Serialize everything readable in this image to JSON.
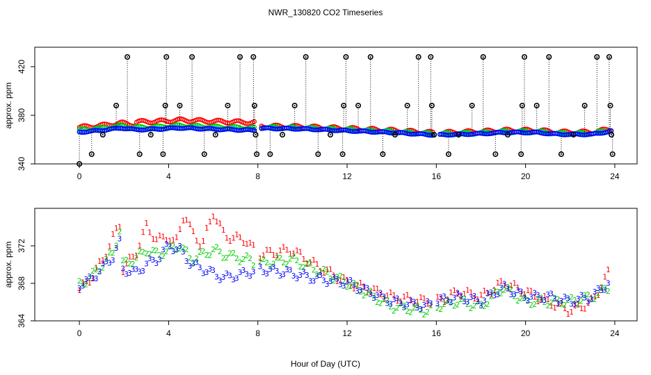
{
  "title": "NWR_130820  CO2 Timeseries",
  "xlabel": "Hour of Day (UTC)",
  "chart_data": [
    {
      "type": "scatter",
      "ylabel": "approx. ppm",
      "xlim": [
        -2,
        25
      ],
      "ylim": [
        340,
        436
      ],
      "x_ticks": [
        0,
        4,
        8,
        12,
        16,
        20,
        24
      ],
      "y_ticks": [
        340,
        380,
        420
      ],
      "colors": {
        "s1": "#ff0000",
        "s2": "#00cc00",
        "s3": "#0000ff",
        "s4": "#00bbbb",
        "spikes": "#000000"
      },
      "series_base": [
        {
          "h": 0.0,
          "v": 366.5
        },
        {
          "h": 1.0,
          "v": 368
        },
        {
          "h": 1.9,
          "v": 370
        },
        {
          "h": 2.5,
          "v": 368.5
        },
        {
          "h": 3.5,
          "v": 369
        },
        {
          "h": 4.5,
          "v": 370
        },
        {
          "h": 6.0,
          "v": 369
        },
        {
          "h": 7.9,
          "v": 368
        },
        {
          "h": 8.1,
          "v": 369.5
        },
        {
          "h": 10.0,
          "v": 369
        },
        {
          "h": 12.0,
          "v": 367.5
        },
        {
          "h": 14.0,
          "v": 366
        },
        {
          "h": 15.9,
          "v": 364
        },
        {
          "h": 16.1,
          "v": 364
        },
        {
          "h": 18.0,
          "v": 365
        },
        {
          "h": 19.0,
          "v": 366
        },
        {
          "h": 20.5,
          "v": 366
        },
        {
          "h": 21.5,
          "v": 364.5
        },
        {
          "h": 23.0,
          "v": 364.5
        },
        {
          "h": 23.8,
          "v": 367
        }
      ],
      "spikes": [
        {
          "x": 0.0,
          "y": 340
        },
        {
          "x": 0.55,
          "y": 348
        },
        {
          "x": 1.05,
          "y": 364
        },
        {
          "x": 1.65,
          "y": 388
        },
        {
          "x": 2.15,
          "y": 428
        },
        {
          "x": 2.7,
          "y": 348
        },
        {
          "x": 3.2,
          "y": 364
        },
        {
          "x": 3.75,
          "y": 348
        },
        {
          "x": 3.85,
          "y": 388
        },
        {
          "x": 3.9,
          "y": 428
        },
        {
          "x": 4.5,
          "y": 388
        },
        {
          "x": 5.05,
          "y": 428
        },
        {
          "x": 5.6,
          "y": 348
        },
        {
          "x": 6.1,
          "y": 364
        },
        {
          "x": 6.65,
          "y": 388
        },
        {
          "x": 7.2,
          "y": 428
        },
        {
          "x": 7.8,
          "y": 428
        },
        {
          "x": 7.85,
          "y": 388
        },
        {
          "x": 7.9,
          "y": 364
        },
        {
          "x": 7.95,
          "y": 348
        },
        {
          "x": 8.55,
          "y": 348
        },
        {
          "x": 9.1,
          "y": 364
        },
        {
          "x": 9.65,
          "y": 388
        },
        {
          "x": 10.15,
          "y": 428
        },
        {
          "x": 10.7,
          "y": 348
        },
        {
          "x": 11.25,
          "y": 364
        },
        {
          "x": 11.8,
          "y": 348
        },
        {
          "x": 11.85,
          "y": 388
        },
        {
          "x": 11.95,
          "y": 428
        },
        {
          "x": 12.5,
          "y": 388
        },
        {
          "x": 13.05,
          "y": 428
        },
        {
          "x": 13.6,
          "y": 348
        },
        {
          "x": 14.15,
          "y": 364
        },
        {
          "x": 14.7,
          "y": 388
        },
        {
          "x": 15.2,
          "y": 428
        },
        {
          "x": 15.75,
          "y": 428
        },
        {
          "x": 15.8,
          "y": 388
        },
        {
          "x": 15.9,
          "y": 364
        },
        {
          "x": 16.55,
          "y": 348
        },
        {
          "x": 17.0,
          "y": 364
        },
        {
          "x": 17.6,
          "y": 388
        },
        {
          "x": 18.1,
          "y": 428
        },
        {
          "x": 18.65,
          "y": 348
        },
        {
          "x": 19.2,
          "y": 364
        },
        {
          "x": 19.8,
          "y": 348
        },
        {
          "x": 19.85,
          "y": 388
        },
        {
          "x": 19.95,
          "y": 428
        },
        {
          "x": 20.5,
          "y": 388
        },
        {
          "x": 21.05,
          "y": 428
        },
        {
          "x": 21.6,
          "y": 348
        },
        {
          "x": 22.15,
          "y": 364
        },
        {
          "x": 22.65,
          "y": 388
        },
        {
          "x": 23.2,
          "y": 428
        },
        {
          "x": 23.75,
          "y": 428
        },
        {
          "x": 23.8,
          "y": 388
        },
        {
          "x": 23.85,
          "y": 364
        },
        {
          "x": 23.9,
          "y": 348
        }
      ]
    },
    {
      "type": "scatter",
      "ylabel": "approx. ppm",
      "xlim": [
        -2,
        25
      ],
      "ylim": [
        364,
        376
      ],
      "x_ticks": [
        0,
        4,
        8,
        12,
        16,
        20,
        24
      ],
      "y_ticks": [
        364,
        368,
        372
      ],
      "point_labels": [
        "1",
        "2",
        "3"
      ],
      "series": [
        {
          "label": "1",
          "color": "#ff0000",
          "points": [
            {
              "x": 0.0,
              "y": 367.2
            },
            {
              "x": 0.5,
              "y": 368.5
            },
            {
              "x": 1.0,
              "y": 370.2
            },
            {
              "x": 1.5,
              "y": 372.8
            },
            {
              "x": 1.85,
              "y": 374.5
            },
            {
              "x": 1.95,
              "y": 369.5
            },
            {
              "x": 2.5,
              "y": 371.0
            },
            {
              "x": 3.0,
              "y": 374.0
            },
            {
              "x": 3.5,
              "y": 372.5
            },
            {
              "x": 4.0,
              "y": 373.0
            },
            {
              "x": 4.3,
              "y": 372.0
            },
            {
              "x": 4.7,
              "y": 375.5
            },
            {
              "x": 5.0,
              "y": 373.5
            },
            {
              "x": 5.5,
              "y": 372.0
            },
            {
              "x": 6.0,
              "y": 375.5
            },
            {
              "x": 6.5,
              "y": 373.0
            },
            {
              "x": 7.5,
              "y": 372.5
            },
            {
              "x": 8.0,
              "y": 371.0
            },
            {
              "x": 9.5,
              "y": 371.5
            },
            {
              "x": 10.5,
              "y": 370.0
            },
            {
              "x": 12.0,
              "y": 368.0
            },
            {
              "x": 14.0,
              "y": 366.5
            },
            {
              "x": 15.5,
              "y": 366.0
            },
            {
              "x": 16.0,
              "y": 366.0
            },
            {
              "x": 17.0,
              "y": 367.0
            },
            {
              "x": 18.0,
              "y": 366.5
            },
            {
              "x": 19.0,
              "y": 368.0
            },
            {
              "x": 20.0,
              "y": 367.0
            },
            {
              "x": 21.0,
              "y": 366.0
            },
            {
              "x": 22.0,
              "y": 365.0
            },
            {
              "x": 23.0,
              "y": 366.0
            },
            {
              "x": 23.7,
              "y": 369.0
            }
          ]
        },
        {
          "label": "2",
          "color": "#00cc00",
          "points": [
            {
              "x": 0.0,
              "y": 367.8
            },
            {
              "x": 0.5,
              "y": 368.6
            },
            {
              "x": 1.0,
              "y": 369.8
            },
            {
              "x": 1.5,
              "y": 371.2
            },
            {
              "x": 1.85,
              "y": 374.0
            },
            {
              "x": 1.95,
              "y": 370.0
            },
            {
              "x": 2.5,
              "y": 370.5
            },
            {
              "x": 3.0,
              "y": 371.5
            },
            {
              "x": 3.5,
              "y": 371.0
            },
            {
              "x": 4.0,
              "y": 371.5
            },
            {
              "x": 4.5,
              "y": 372.0
            },
            {
              "x": 5.0,
              "y": 370.5
            },
            {
              "x": 5.5,
              "y": 371.0
            },
            {
              "x": 6.0,
              "y": 371.5
            },
            {
              "x": 6.5,
              "y": 371.0
            },
            {
              "x": 7.5,
              "y": 370.5
            },
            {
              "x": 8.0,
              "y": 370.0
            },
            {
              "x": 9.5,
              "y": 370.5
            },
            {
              "x": 10.5,
              "y": 369.5
            },
            {
              "x": 12.0,
              "y": 368.0
            },
            {
              "x": 14.0,
              "y": 365.5
            },
            {
              "x": 15.5,
              "y": 365.0
            },
            {
              "x": 16.0,
              "y": 365.5
            },
            {
              "x": 17.0,
              "y": 366.0
            },
            {
              "x": 18.0,
              "y": 365.5
            },
            {
              "x": 19.0,
              "y": 367.5
            },
            {
              "x": 20.0,
              "y": 366.0
            },
            {
              "x": 21.0,
              "y": 366.0
            },
            {
              "x": 22.0,
              "y": 366.0
            },
            {
              "x": 23.0,
              "y": 366.5
            },
            {
              "x": 23.7,
              "y": 367.5
            }
          ]
        },
        {
          "label": "3",
          "color": "#0000ff",
          "points": [
            {
              "x": 0.0,
              "y": 367.8
            },
            {
              "x": 0.5,
              "y": 368.3
            },
            {
              "x": 1.0,
              "y": 369.5
            },
            {
              "x": 1.5,
              "y": 370.8
            },
            {
              "x": 1.85,
              "y": 372.5
            },
            {
              "x": 1.95,
              "y": 369.5
            },
            {
              "x": 2.5,
              "y": 369.0
            },
            {
              "x": 3.0,
              "y": 370.0
            },
            {
              "x": 3.5,
              "y": 370.5
            },
            {
              "x": 4.0,
              "y": 372.0
            },
            {
              "x": 4.5,
              "y": 371.5
            },
            {
              "x": 5.0,
              "y": 370.0
            },
            {
              "x": 5.5,
              "y": 369.5
            },
            {
              "x": 6.0,
              "y": 369.0
            },
            {
              "x": 6.5,
              "y": 368.5
            },
            {
              "x": 7.5,
              "y": 369.0
            },
            {
              "x": 8.0,
              "y": 369.5
            },
            {
              "x": 9.5,
              "y": 369.0
            },
            {
              "x": 10.5,
              "y": 368.5
            },
            {
              "x": 12.0,
              "y": 368.0
            },
            {
              "x": 14.0,
              "y": 366.0
            },
            {
              "x": 15.5,
              "y": 365.5
            },
            {
              "x": 16.0,
              "y": 366.0
            },
            {
              "x": 17.0,
              "y": 366.5
            },
            {
              "x": 18.0,
              "y": 366.0
            },
            {
              "x": 19.0,
              "y": 367.5
            },
            {
              "x": 20.0,
              "y": 366.5
            },
            {
              "x": 21.0,
              "y": 366.5
            },
            {
              "x": 22.0,
              "y": 366.0
            },
            {
              "x": 23.0,
              "y": 366.5
            },
            {
              "x": 23.7,
              "y": 368.0
            }
          ]
        }
      ]
    }
  ]
}
